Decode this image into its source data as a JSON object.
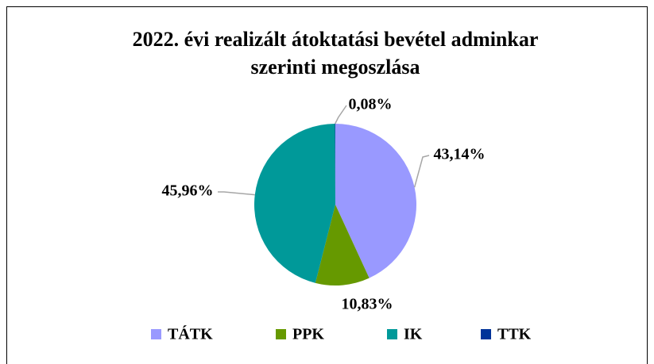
{
  "chart_data": {
    "type": "pie",
    "title": [
      "2022. évi realizált átoktatási bevétel adminkar",
      "szerinti megoszlása"
    ],
    "categories": [
      "TÁTK",
      "PPK",
      "IK",
      "TTK"
    ],
    "values": [
      43.14,
      10.83,
      45.96,
      0.08
    ],
    "value_labels": [
      "43,14%",
      "10,83%",
      "45,96%",
      "0,08%"
    ],
    "colors": [
      "#9999ff",
      "#669900",
      "#009999",
      "#003399"
    ],
    "legend": "bottom"
  }
}
